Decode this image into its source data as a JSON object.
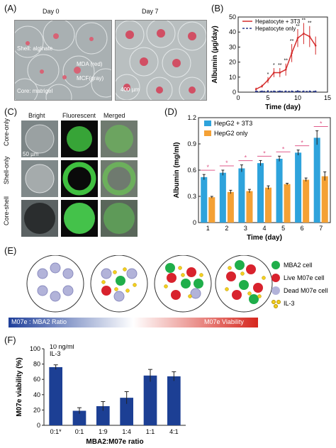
{
  "panelA": {
    "label": "(A)",
    "day0": "Day 0",
    "day7": "Day 7",
    "shell": "Shell: alginate",
    "mda": "MDA (red)",
    "mcf": "MCF(gray)",
    "core": "Core: matrigel",
    "scale": "400 µm"
  },
  "panelC": {
    "label": "(C)",
    "cols": [
      "Bright",
      "Fluorescent",
      "Merged"
    ],
    "rows": [
      "Core-only",
      "Shell-only",
      "Core-shell"
    ],
    "scale": "50 µm"
  },
  "panelE": {
    "label": "(E)",
    "legend": [
      {
        "label": "MBA2 cell",
        "color": "#1fae4a"
      },
      {
        "label": "Live M07e cell",
        "color": "#d8222d"
      },
      {
        "label": "Dead M07e cell",
        "color": "#b2b3d9"
      },
      {
        "label": "IL-3",
        "color": "#f3cf1f"
      }
    ],
    "bar_left": "M07e : MBA2 Ratio",
    "bar_right": "M07e Viability"
  },
  "chart_data": [
    {
      "panel": "(B)",
      "type": "line",
      "xlabel": "Time (day)",
      "ylabel": "Albumin (µg/day)",
      "xlim": [
        0,
        15
      ],
      "ylim": [
        0,
        50
      ],
      "xticks": [
        0,
        5,
        10,
        15
      ],
      "yticks": [
        0,
        10,
        20,
        30,
        40,
        50
      ],
      "legend_position": "top-right",
      "series": [
        {
          "name": "Hepatocyte + 3T3",
          "color": "#d42b2b",
          "x": [
            3,
            4,
            5,
            6,
            7,
            8,
            9,
            10,
            11,
            12,
            13
          ],
          "y": [
            2,
            4,
            8,
            13,
            13,
            15,
            26,
            36,
            39,
            37,
            31
          ],
          "err": [
            1,
            1,
            2,
            3,
            3,
            4,
            6,
            6,
            7,
            7,
            6
          ]
        },
        {
          "name": "Hepatocyte only",
          "color": "#2b3a8a",
          "x": [
            3,
            4,
            5,
            6,
            7,
            8,
            9,
            10,
            11,
            12,
            13
          ],
          "y": [
            0.5,
            0.5,
            0.5,
            0.5,
            0.5,
            0.5,
            0.5,
            0.5,
            0.5,
            0.5,
            0.5
          ],
          "err": [
            0,
            0,
            0,
            0,
            0,
            0,
            0,
            0,
            0,
            0,
            0
          ]
        }
      ],
      "annotations": [
        "*",
        "*",
        "**",
        "**",
        "**",
        "**",
        "**",
        "**"
      ]
    },
    {
      "panel": "(D)",
      "type": "bar",
      "xlabel": "Time (day)",
      "ylabel": "Albumin (mg/ml)",
      "categories": [
        "1",
        "2",
        "3",
        "4",
        "5",
        "6",
        "7"
      ],
      "ylim": [
        0,
        1.2
      ],
      "yticks": [
        "0",
        "0.3",
        "0.6",
        "0.9",
        "1.2"
      ],
      "legend_position": "top-left",
      "series": [
        {
          "name": "HepG2 + 3T3",
          "color": "#2ea3dc",
          "values": [
            0.52,
            0.57,
            0.62,
            0.68,
            0.73,
            0.8,
            0.97
          ],
          "err": [
            0.03,
            0.03,
            0.04,
            0.03,
            0.03,
            0.03,
            0.08
          ]
        },
        {
          "name": "HepG2 only",
          "color": "#f4a135",
          "values": [
            0.29,
            0.35,
            0.36,
            0.4,
            0.44,
            0.49,
            0.53
          ],
          "err": [
            0.01,
            0.02,
            0.02,
            0.02,
            0.01,
            0.02,
            0.05
          ]
        }
      ],
      "significance": [
        "*",
        "*",
        "*",
        "*",
        "*",
        "*",
        "*"
      ]
    },
    {
      "panel": "(F)",
      "type": "bar",
      "xlabel": "MBA2:M07e ratio",
      "ylabel": "M07e viability (%)",
      "categories": [
        "0:1*",
        "0:1",
        "1:9",
        "1:4",
        "1:1",
        "4:1"
      ],
      "ylim": [
        0,
        100
      ],
      "yticks": [
        0,
        20,
        40,
        60,
        80,
        100
      ],
      "annotation": [
        "10 ng/ml",
        "IL-3"
      ],
      "series": [
        {
          "color": "#1c3f94",
          "values": [
            76,
            19,
            25,
            36,
            65,
            64
          ],
          "err": [
            3,
            4,
            6,
            8,
            8,
            6
          ]
        }
      ]
    }
  ]
}
